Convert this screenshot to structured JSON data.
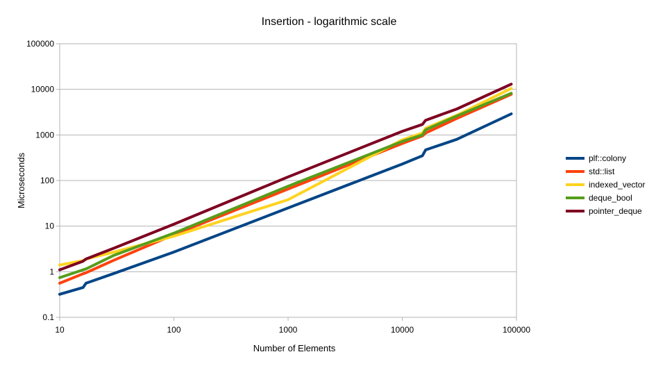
{
  "chart_data": {
    "type": "line",
    "title": "Insertion - logarithmic scale",
    "xlabel": "Number of Elements",
    "ylabel": "Microseconds",
    "x_scale": "log",
    "y_scale": "log",
    "xlim": [
      10,
      100000
    ],
    "ylim": [
      0.1,
      100000
    ],
    "x_ticks": [
      "10",
      "100",
      "1000",
      "10000",
      "100000"
    ],
    "y_ticks": [
      "0.1",
      "1",
      "10",
      "100",
      "1000",
      "10000",
      "100000"
    ],
    "grid": "horizontal",
    "legend_position": "right",
    "x": [
      10,
      16,
      17,
      30,
      100,
      1000,
      10000,
      15000,
      16000,
      30000,
      90000
    ],
    "series": [
      {
        "name": "plf::colony",
        "color": "#004586",
        "values": [
          0.32,
          0.45,
          0.56,
          0.92,
          2.7,
          25,
          230,
          350,
          470,
          800,
          2900
        ]
      },
      {
        "name": "std::list",
        "color": "#ff420e",
        "values": [
          0.56,
          0.9,
          0.95,
          1.8,
          6.5,
          65,
          650,
          950,
          1100,
          2300,
          7800
        ]
      },
      {
        "name": "indexed_vector",
        "color": "#ffd320",
        "values": [
          1.4,
          1.75,
          1.9,
          2.7,
          6.0,
          38,
          780,
          1100,
          1400,
          2700,
          10500
        ]
      },
      {
        "name": "deque_bool",
        "color": "#579d1c",
        "values": [
          0.74,
          1.1,
          1.15,
          2.3,
          7.0,
          75,
          720,
          1000,
          1300,
          2600,
          8200
        ]
      },
      {
        "name": "pointer_deque",
        "color": "#7e0021",
        "values": [
          1.1,
          1.7,
          1.9,
          3.3,
          11,
          120,
          1200,
          1700,
          2100,
          3700,
          13000
        ]
      }
    ]
  }
}
